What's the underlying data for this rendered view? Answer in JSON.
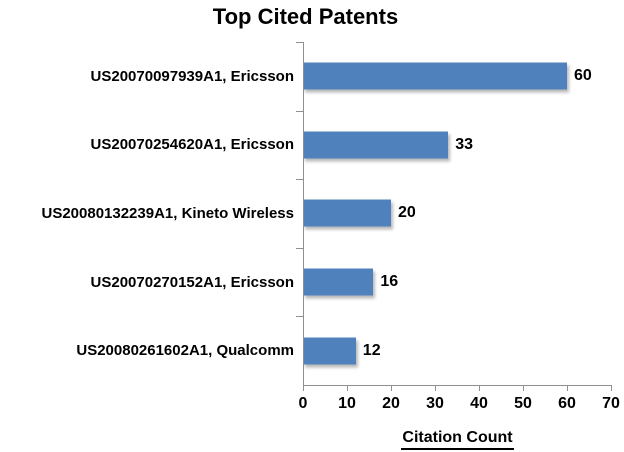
{
  "chart_data": {
    "type": "bar",
    "orientation": "horizontal",
    "title": "Top Cited Patents",
    "xlabel": "Citation Count",
    "categories": [
      "US20070097939A1, Ericsson",
      "US20070254620A1, Ericsson",
      "US20080132239A1, Kineto Wireless",
      "US20070270152A1, Ericsson",
      "US20080261602A1, Qualcomm"
    ],
    "values": [
      60,
      33,
      20,
      16,
      12
    ],
    "data_labels": [
      60,
      33,
      20,
      16,
      12
    ],
    "xlim": [
      0,
      70
    ],
    "xticks": [
      0,
      10,
      20,
      30,
      40,
      50,
      60,
      70
    ],
    "grid": false,
    "legend": false,
    "bar_color": "#4F81BD",
    "axis_color": "#8F8F8F",
    "text_color": "#000000",
    "background_color": "#FFFFFF"
  }
}
